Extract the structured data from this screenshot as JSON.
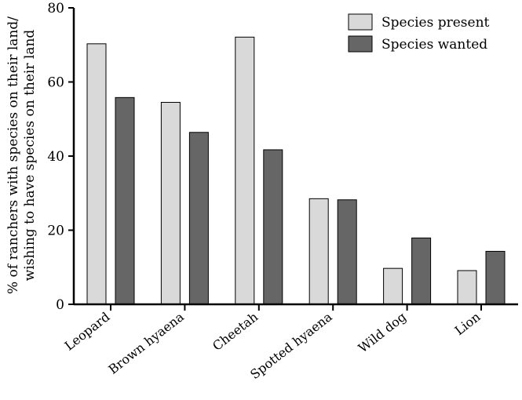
{
  "chart_data": {
    "type": "bar",
    "title": "",
    "xlabel": "",
    "ylabel_lines": [
      "% of ranchers with species on their land/",
      "wishing to have species on their land"
    ],
    "ylim": [
      0,
      80
    ],
    "yticks": [
      0,
      20,
      40,
      60,
      80
    ],
    "categories": [
      "Leopard",
      "Brown hyaena",
      "Cheetah",
      "Spotted hyaena",
      "Wild dog",
      "Lion"
    ],
    "series": [
      {
        "name": "Species present",
        "color": "#d9d9d9",
        "values": [
          70.3,
          54.5,
          72.1,
          28.5,
          9.7,
          9.1
        ]
      },
      {
        "name": "Species wanted",
        "color": "#666666",
        "values": [
          55.8,
          46.4,
          41.7,
          28.2,
          17.9,
          14.3
        ]
      }
    ],
    "legend_position": "top-right"
  }
}
